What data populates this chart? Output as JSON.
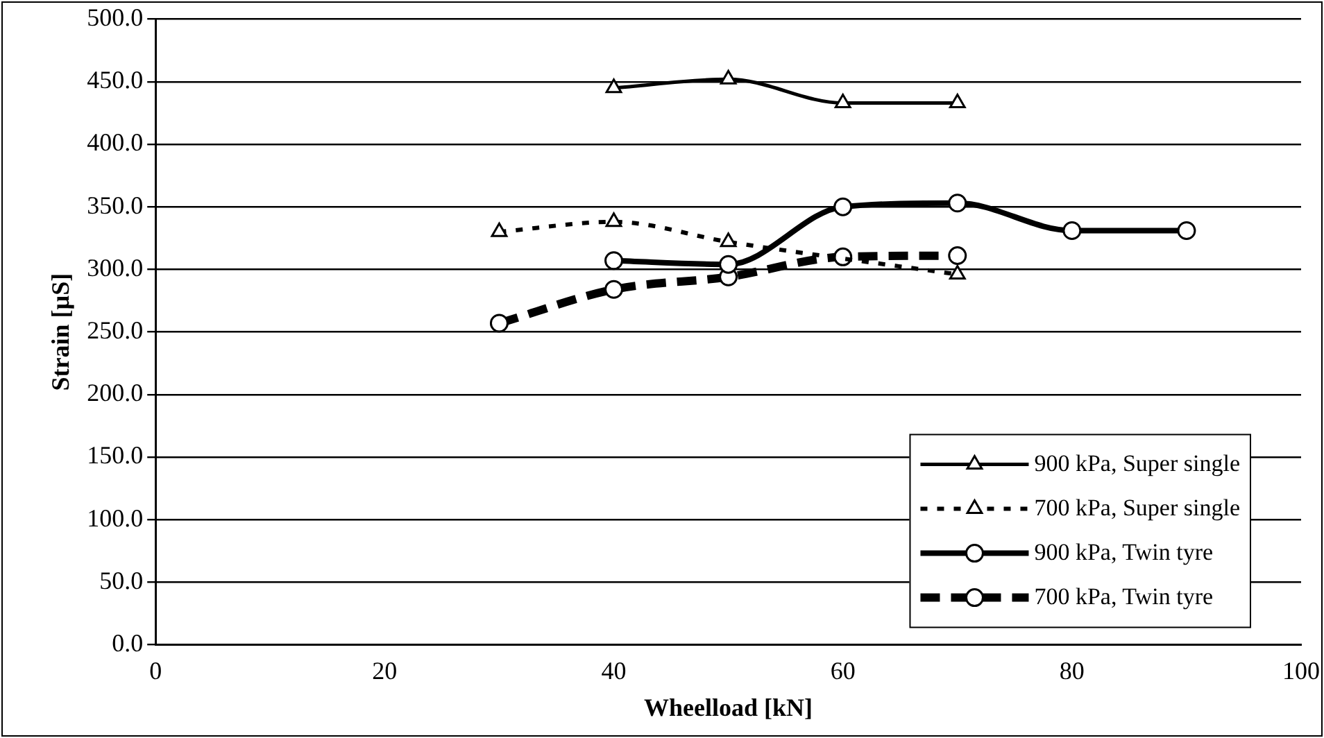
{
  "chart_data": {
    "type": "line",
    "xlabel": "Wheelload [kN]",
    "ylabel": "Strain [µS]",
    "xlim": [
      0,
      100
    ],
    "xticks": [
      0,
      20,
      40,
      60,
      80,
      100
    ],
    "ylim": [
      0,
      500
    ],
    "yticks": [
      {
        "value": 0,
        "label": "0.0"
      },
      {
        "value": 50,
        "label": "50.0"
      },
      {
        "value": 100,
        "label": "100.0"
      },
      {
        "value": 150,
        "label": "150.0"
      },
      {
        "value": 200,
        "label": "200.0"
      },
      {
        "value": 250,
        "label": "250.0"
      },
      {
        "value": 300,
        "label": "300.0"
      },
      {
        "value": 350,
        "label": "350.0"
      },
      {
        "value": 400,
        "label": "400.0"
      },
      {
        "value": 450,
        "label": "450.0"
      },
      {
        "value": 500,
        "label": "500.0"
      }
    ],
    "grid": "y",
    "legend": "bottom right",
    "series": [
      {
        "name": "900 kPa, Super single",
        "color": "#000000",
        "marker": "triangle",
        "line_style": "solid",
        "x": [
          40,
          50,
          60,
          70
        ],
        "values": [
          445,
          452,
          433,
          433
        ]
      },
      {
        "name": "700 kPa, Super single",
        "color": "#000000",
        "marker": "triangle",
        "line_style": "dotted",
        "x": [
          30,
          40,
          50,
          60,
          70
        ],
        "values": [
          330,
          338,
          322,
          null,
          296
        ]
      },
      {
        "name": "900 kPa, Twin tyre",
        "color": "#000000",
        "marker": "circle",
        "line_style": "solid",
        "x": [
          40,
          50,
          60,
          70,
          80,
          90
        ],
        "values": [
          307,
          304,
          350,
          353,
          331,
          331
        ]
      },
      {
        "name": "700 kPa, Twin tyre",
        "color": "#000000",
        "marker": "circle",
        "line_style": "dashed",
        "x": [
          30,
          40,
          50,
          60,
          70
        ],
        "values": [
          257,
          284,
          294,
          310,
          311
        ]
      }
    ]
  }
}
